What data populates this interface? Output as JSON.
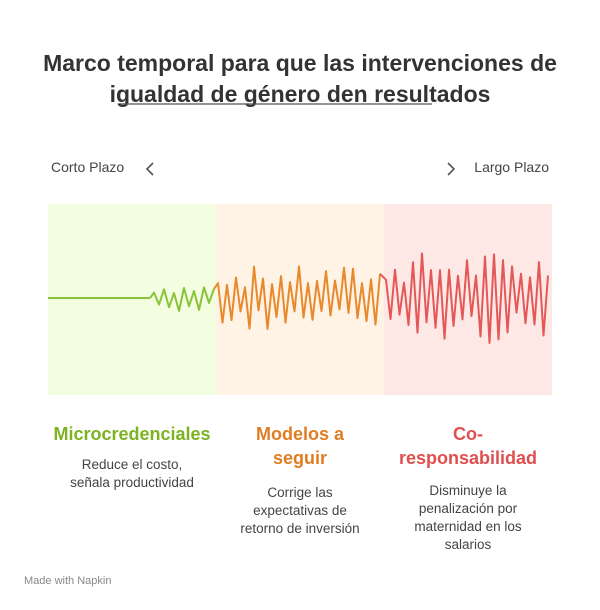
{
  "header": {
    "title_lines": [
      "Marco temporal para que las intervenciones de",
      "igualdad de género den resultados"
    ]
  },
  "timeline": {
    "start_label": "Corto Plazo",
    "end_label": "Largo Plazo"
  },
  "sections": [
    {
      "title_lines": [
        "Microcredenciales"
      ],
      "description_lines": [
        "Reduce el costo,",
        "señala productividad"
      ]
    },
    {
      "title_lines": [
        "Modelos a",
        "seguir"
      ],
      "description_lines": [
        "Corrige las",
        "expectativas de",
        "retorno de inversión"
      ]
    },
    {
      "title_lines": [
        "Co-",
        "responsabilidad"
      ],
      "description_lines": [
        "Disminuye la",
        "penalización por",
        "maternidad en los",
        "salarios"
      ]
    }
  ],
  "footer": {
    "text": "Made with Napkin"
  }
}
